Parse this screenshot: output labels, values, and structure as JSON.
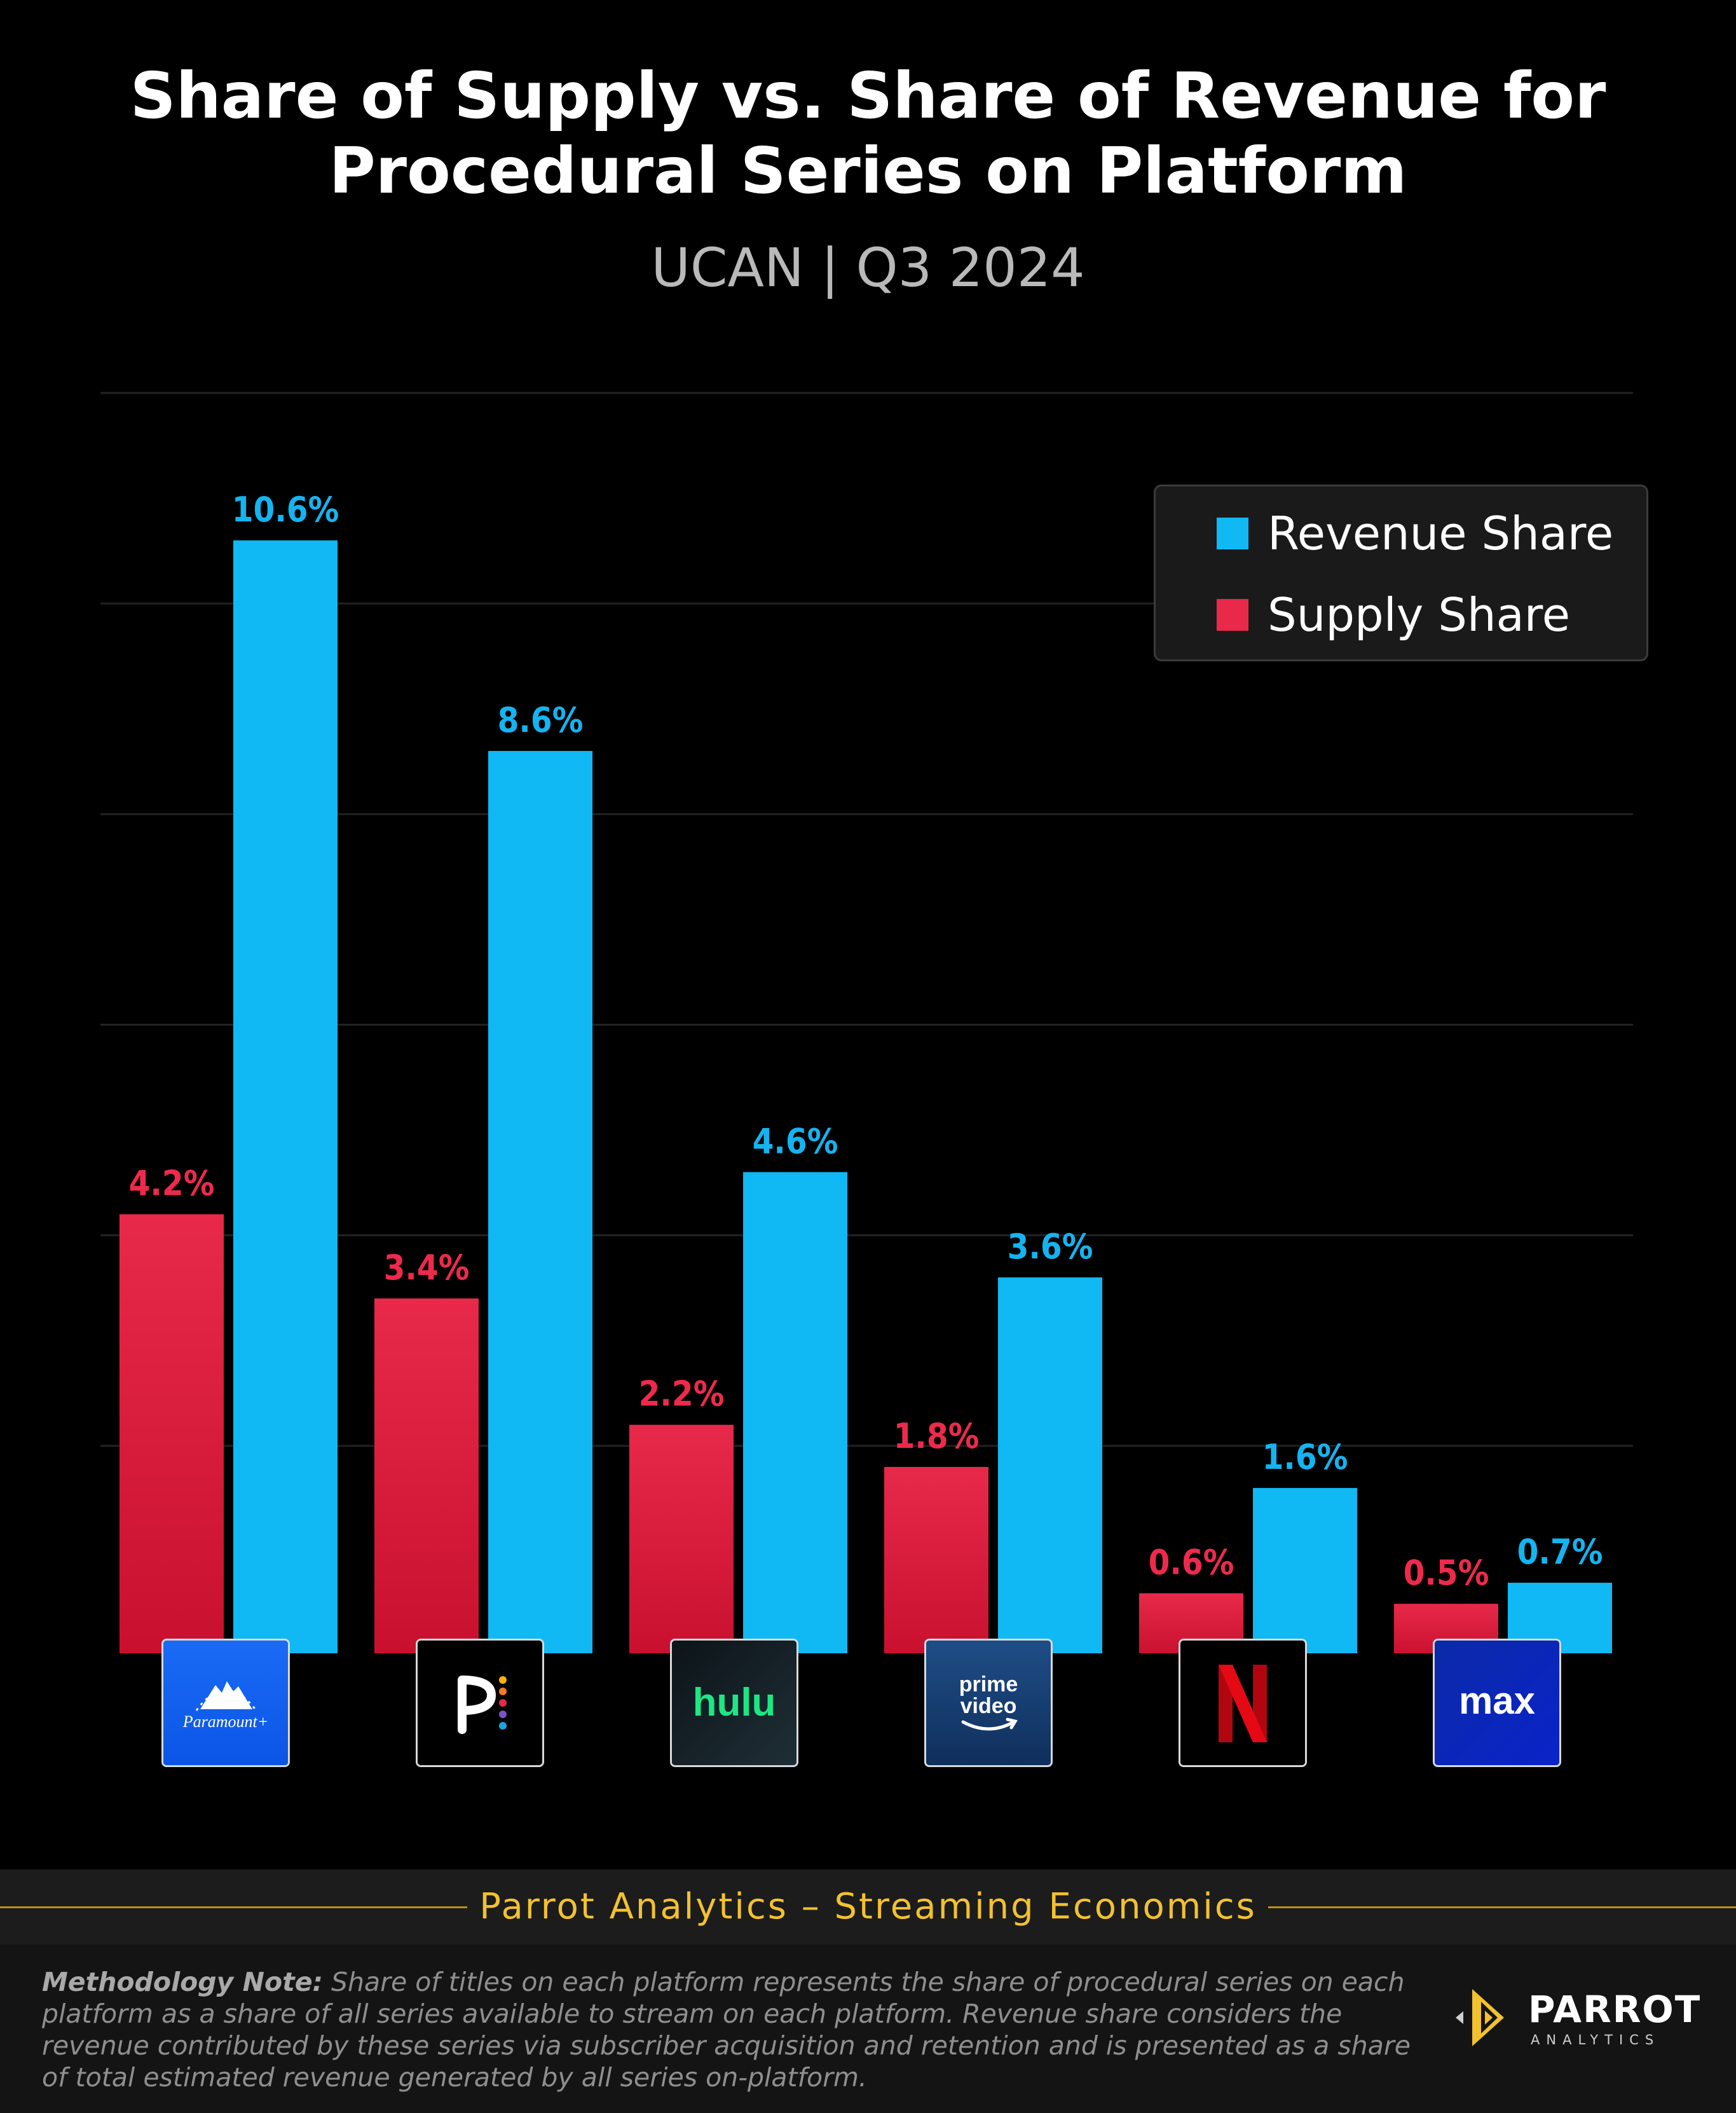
{
  "title_line1": "Share of Supply vs. Share of Revenue for",
  "title_line2": "Procedural Series on Platform",
  "subtitle": "UCAN |  Q3 2024",
  "colors": {
    "revenue": "#10b8f4",
    "supply": "#e8294a",
    "supply_dark": "#c8102e",
    "revenue_label": "#14b4f0",
    "supply_label": "#ee2a4c",
    "footer_title": "#f2c12e",
    "footer_line": "#b89218"
  },
  "legend": {
    "revenue_label": "Revenue Share",
    "supply_label": "Supply Share"
  },
  "logos": {
    "paramount_text": "Paramount+",
    "hulu_text": "hulu",
    "prime_line1": "prime",
    "prime_line2": "video",
    "max_text": "max"
  },
  "chart_data": {
    "type": "bar",
    "title": "Share of Supply vs. Share of Revenue for Procedural Series on Platform",
    "subtitle": "UCAN |  Q3 2024",
    "categories": [
      "Paramount+",
      "Peacock",
      "Hulu",
      "Prime Video",
      "Netflix",
      "Max"
    ],
    "series": [
      {
        "name": "Supply Share",
        "values": [
          4.2,
          3.4,
          2.2,
          1.8,
          0.6,
          0.5
        ],
        "labels": [
          "4.2%",
          "3.4%",
          "2.2%",
          "1.8%",
          "0.6%",
          "0.5%"
        ]
      },
      {
        "name": "Revenue Share",
        "values": [
          10.6,
          8.6,
          4.6,
          3.6,
          1.6,
          0.7
        ],
        "labels": [
          "10.6%",
          "8.6%",
          "4.6%",
          "3.6%",
          "1.6%",
          "0.7%"
        ]
      }
    ],
    "xlabel": "",
    "ylabel": "",
    "ylim": [
      0,
      12
    ],
    "grid": true,
    "legend": "top-right"
  },
  "footer": {
    "title": "Parrot Analytics – Streaming Economics",
    "methodology_label": "Methodology Note:",
    "methodology_text": " Share of titles on each platform represents the share of procedural series on each platform as a share of all series available to stream on each platform.  Revenue share considers the revenue contributed by these series via subscriber acquisition and retention and is presented as a share of total estimated revenue generated by all series on-platform."
  },
  "brand": {
    "name": "PARROT",
    "sub": "ANALYTICS"
  }
}
